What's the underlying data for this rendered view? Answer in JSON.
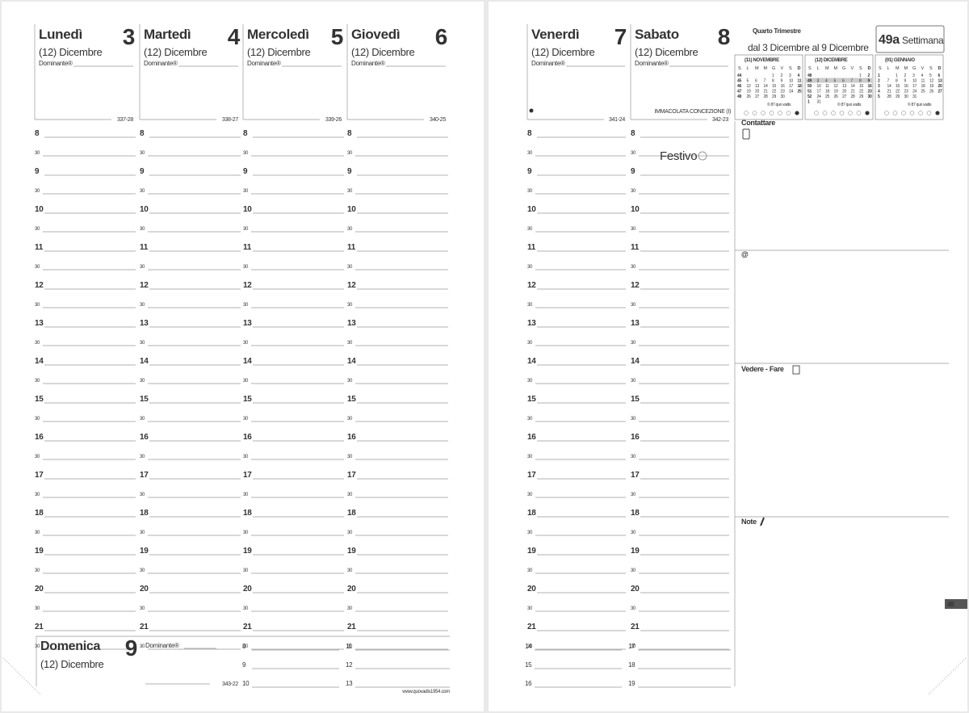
{
  "left_page": {
    "days": [
      {
        "name": "Lunedì",
        "number": "3",
        "month": "(12) Dicembre",
        "dominant": "Dominante®",
        "day_code": "337-28"
      },
      {
        "name": "Martedì",
        "number": "4",
        "month": "(12) Dicembre",
        "dominant": "Dominante®",
        "day_code": "338-27"
      },
      {
        "name": "Mercoledì",
        "number": "5",
        "month": "(12) Dicembre",
        "dominant": "Dominante®",
        "day_code": "339-26"
      },
      {
        "name": "Giovedì",
        "number": "6",
        "month": "(12) Dicembre",
        "dominant": "Dominante®",
        "day_code": "340-25"
      }
    ],
    "hours": [
      "8",
      "9",
      "10",
      "11",
      "12",
      "13",
      "14",
      "15",
      "16",
      "17",
      "18",
      "19",
      "20",
      "21"
    ],
    "half": "30",
    "sunday": {
      "name": "Domenica",
      "number": "9",
      "month": "(12) Dicembre",
      "dominant": "Dominante®",
      "day_code": "343-22",
      "hours": [
        [
          "8",
          "9",
          "10"
        ],
        [
          "11",
          "12",
          "13"
        ]
      ]
    },
    "website": "www.quovadis1954.com"
  },
  "right_page": {
    "days": [
      {
        "name": "Venerdì",
        "number": "7",
        "month": "(12) Dicembre",
        "dominant": "Dominante®",
        "day_code": "341-24"
      },
      {
        "name": "Sabato",
        "number": "8",
        "month": "(12) Dicembre",
        "dominant": "Dominante®",
        "day_code": "342-23",
        "holiday": "IMMACOLATA CONCEZIONE (I)",
        "note": "Festivo"
      }
    ],
    "evening_hours": [
      [
        "14",
        "15",
        "16"
      ],
      [
        "17",
        "18",
        "19"
      ]
    ],
    "quarter": "Quarto Trimestre",
    "date_range": "dal 3 Dicembre al 9 Dicembre",
    "week": {
      "number": "49a",
      "label": "Settimana"
    },
    "weekday_letters": [
      "S",
      "L",
      "M",
      "M",
      "G",
      "V",
      "S",
      "D"
    ],
    "mini_calendars": [
      {
        "title": "(11) NOVEMBRE",
        "footer": "© 87 quo vadis",
        "rows": [
          {
            "week": "44",
            "days": [
              null,
              null,
              null,
              "1",
              "2",
              "3",
              "4"
            ]
          },
          {
            "week": "45",
            "days": [
              "5",
              "6",
              "7",
              "8",
              "9",
              "10",
              "11"
            ]
          },
          {
            "week": "46",
            "days": [
              "12",
              "13",
              "14",
              "15",
              "16",
              "17",
              "18"
            ]
          },
          {
            "week": "47",
            "days": [
              "19",
              "20",
              "21",
              "22",
              "23",
              "24",
              "25"
            ]
          },
          {
            "week": "48",
            "days": [
              "26",
              "27",
              "28",
              "29",
              "30",
              null,
              null
            ]
          }
        ]
      },
      {
        "title": "(12) DICEMBRE",
        "footer": "© 87 quo vadis",
        "rows": [
          {
            "week": "48",
            "days": [
              null,
              null,
              null,
              null,
              null,
              "1",
              "2"
            ]
          },
          {
            "week": "49",
            "days": [
              "3",
              "4",
              "5",
              "6",
              "7",
              "8",
              "9"
            ]
          },
          {
            "week": "50",
            "days": [
              "10",
              "11",
              "12",
              "13",
              "14",
              "15",
              "16"
            ]
          },
          {
            "week": "51",
            "days": [
              "17",
              "18",
              "19",
              "20",
              "21",
              "22",
              "23"
            ]
          },
          {
            "week": "52",
            "days": [
              "24",
              "25",
              "26",
              "27",
              "28",
              "29",
              "30"
            ]
          },
          {
            "week": "1",
            "days": [
              "31",
              null,
              null,
              null,
              null,
              null,
              null
            ]
          }
        ]
      },
      {
        "title": "(01) GENNAIO",
        "footer": "© 87 quo vadis",
        "rows": [
          {
            "week": "1",
            "days": [
              null,
              "1",
              "2",
              "3",
              "4",
              "5",
              "6"
            ]
          },
          {
            "week": "2",
            "days": [
              "7",
              "8",
              "9",
              "10",
              "11",
              "12",
              "13"
            ]
          },
          {
            "week": "3",
            "days": [
              "14",
              "15",
              "16",
              "17",
              "18",
              "19",
              "20"
            ]
          },
          {
            "week": "4",
            "days": [
              "21",
              "22",
              "23",
              "24",
              "25",
              "26",
              "27"
            ]
          },
          {
            "week": "5",
            "days": [
              "28",
              "29",
              "30",
              "31",
              null,
              null,
              null
            ]
          }
        ]
      }
    ],
    "sections": [
      "Contattare",
      "@",
      "Vedere - Fare",
      "Note"
    ],
    "page_number": "49"
  }
}
